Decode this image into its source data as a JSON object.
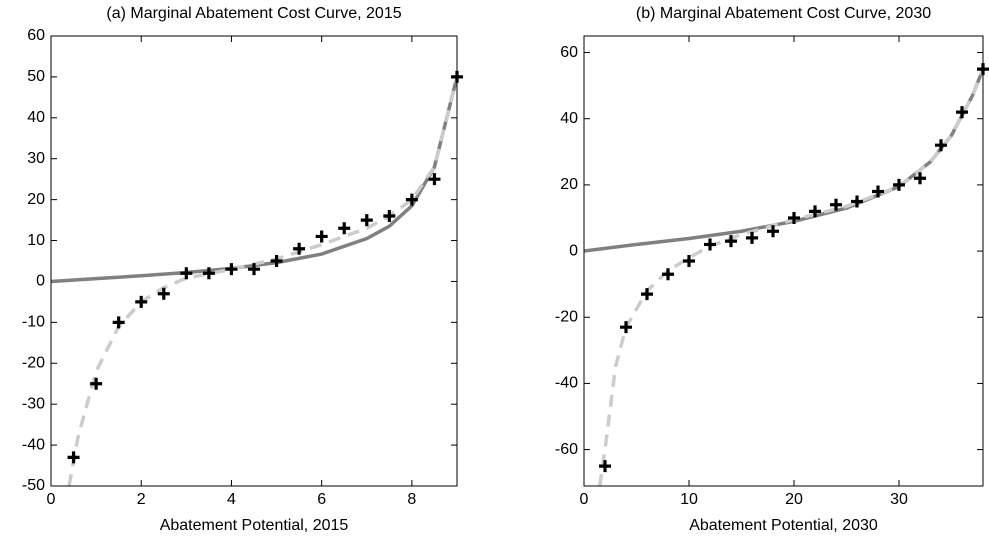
{
  "chart_data": [
    {
      "type": "line",
      "title": "(a) Marginal Abatement Cost Curve, 2015",
      "x_label": "Abatement Potential, 2015",
      "xlim": [
        0,
        9
      ],
      "ylim": [
        -50,
        60
      ],
      "xticks": [
        0,
        2,
        4,
        6,
        8
      ],
      "yticks": [
        -50,
        -40,
        -30,
        -20,
        -10,
        0,
        10,
        20,
        30,
        40,
        50,
        60
      ],
      "series": [
        {
          "color": "#808080",
          "mode": "line",
          "dashed": false,
          "x": [
            0,
            1,
            2,
            3,
            4,
            5,
            6,
            7,
            7.5,
            8,
            8.5,
            9
          ],
          "values": [
            0,
            0.7,
            1.4,
            2.2,
            3.2,
            4.6,
            6.7,
            10.5,
            13.5,
            18.5,
            28,
            50
          ]
        },
        {
          "color": "#cccccc",
          "mode": "line",
          "dashed": true,
          "x": [
            0.4,
            0.6,
            1,
            1.5,
            2,
            2.5,
            3,
            4,
            5,
            6,
            7,
            7.5,
            8,
            8.5,
            9
          ],
          "values": [
            -50,
            -38,
            -22,
            -11,
            -5,
            -1.5,
            0.8,
            3,
            5.5,
            9,
            13,
            16,
            20,
            28,
            50
          ]
        },
        {
          "color": "#000000",
          "mode": "markers",
          "x": [
            0.5,
            1,
            1.5,
            2,
            2.5,
            3,
            3.5,
            4,
            4.5,
            5,
            5.5,
            6,
            6.5,
            7,
            7.5,
            8,
            8.5,
            9
          ],
          "values": [
            -43,
            -25,
            -10,
            -5,
            -3,
            2,
            2,
            3,
            3,
            5,
            8,
            11,
            13,
            15,
            16,
            20,
            25,
            50
          ]
        }
      ]
    },
    {
      "type": "line",
      "title": "(b) Marginal Abatement Cost Curve, 2030",
      "x_label": "Abatement Potential, 2030",
      "xlim": [
        0,
        38
      ],
      "ylim": [
        -71,
        65
      ],
      "xticks": [
        0,
        10,
        20,
        30
      ],
      "yticks": [
        -60,
        -40,
        -20,
        0,
        20,
        40,
        60
      ],
      "series": [
        {
          "color": "#808080",
          "mode": "line",
          "dashed": false,
          "x": [
            0,
            5,
            10,
            15,
            20,
            25,
            30,
            33,
            35,
            37,
            38
          ],
          "values": [
            0,
            2,
            3.8,
            6,
            9,
            13,
            19.5,
            27,
            35,
            47,
            55
          ]
        },
        {
          "color": "#cccccc",
          "mode": "line",
          "dashed": true,
          "x": [
            1.5,
            2,
            3,
            4,
            6,
            8,
            10,
            12,
            15,
            20,
            25,
            30,
            33,
            35,
            37,
            38
          ],
          "values": [
            -71,
            -60,
            -35,
            -23,
            -12,
            -6,
            -2,
            1.5,
            5,
            9.5,
            13.5,
            19.5,
            27,
            35,
            47,
            55
          ]
        },
        {
          "color": "#000000",
          "mode": "markers",
          "x": [
            2,
            4,
            6,
            8,
            10,
            12,
            14,
            16,
            18,
            20,
            22,
            24,
            26,
            28,
            30,
            32,
            34,
            36,
            38
          ],
          "values": [
            -65,
            -23,
            -13,
            -7,
            -3,
            2,
            3,
            4,
            6,
            10,
            12,
            14,
            15,
            18,
            20,
            22,
            32,
            42,
            55
          ]
        }
      ]
    }
  ]
}
